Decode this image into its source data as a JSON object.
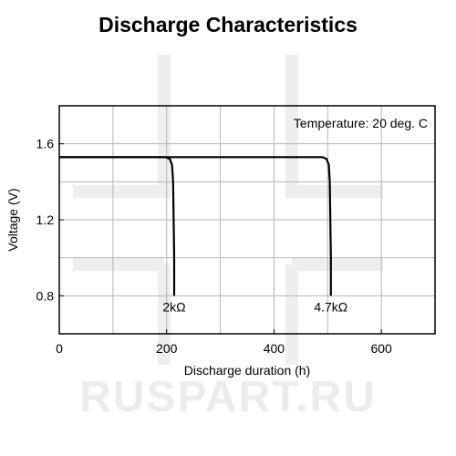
{
  "watermark": "RUSPART.RU",
  "chart_data": {
    "type": "line",
    "title": "Discharge Characteristics",
    "xlabel": "Discharge duration (h)",
    "ylabel": "Voltage (V)",
    "xlim": [
      0,
      700
    ],
    "ylim": [
      0.6,
      1.8
    ],
    "x_ticks": [
      0,
      200,
      400,
      600
    ],
    "y_ticks": [
      0.8,
      1.2,
      1.6
    ],
    "x_tick_labels": [
      "0",
      "200",
      "400",
      "600"
    ],
    "y_tick_labels": [
      "0.8",
      "1.2",
      "1.6"
    ],
    "grid": true,
    "annotation": "Temperature: 20 deg. C",
    "line_color": "#000000",
    "series": [
      {
        "name": "2kΩ",
        "points": [
          [
            0,
            1.53
          ],
          [
            198,
            1.53
          ],
          [
            206,
            1.52
          ],
          [
            210,
            1.49
          ],
          [
            212,
            1.4
          ],
          [
            213,
            1.2
          ],
          [
            214,
            1.0
          ],
          [
            214,
            0.8
          ]
        ]
      },
      {
        "name": "4.7kΩ",
        "points": [
          [
            0,
            1.53
          ],
          [
            490,
            1.53
          ],
          [
            498,
            1.52
          ],
          [
            502,
            1.49
          ],
          [
            504,
            1.4
          ],
          [
            505,
            1.2
          ],
          [
            506,
            1.0
          ],
          [
            506,
            0.8
          ]
        ]
      }
    ]
  }
}
